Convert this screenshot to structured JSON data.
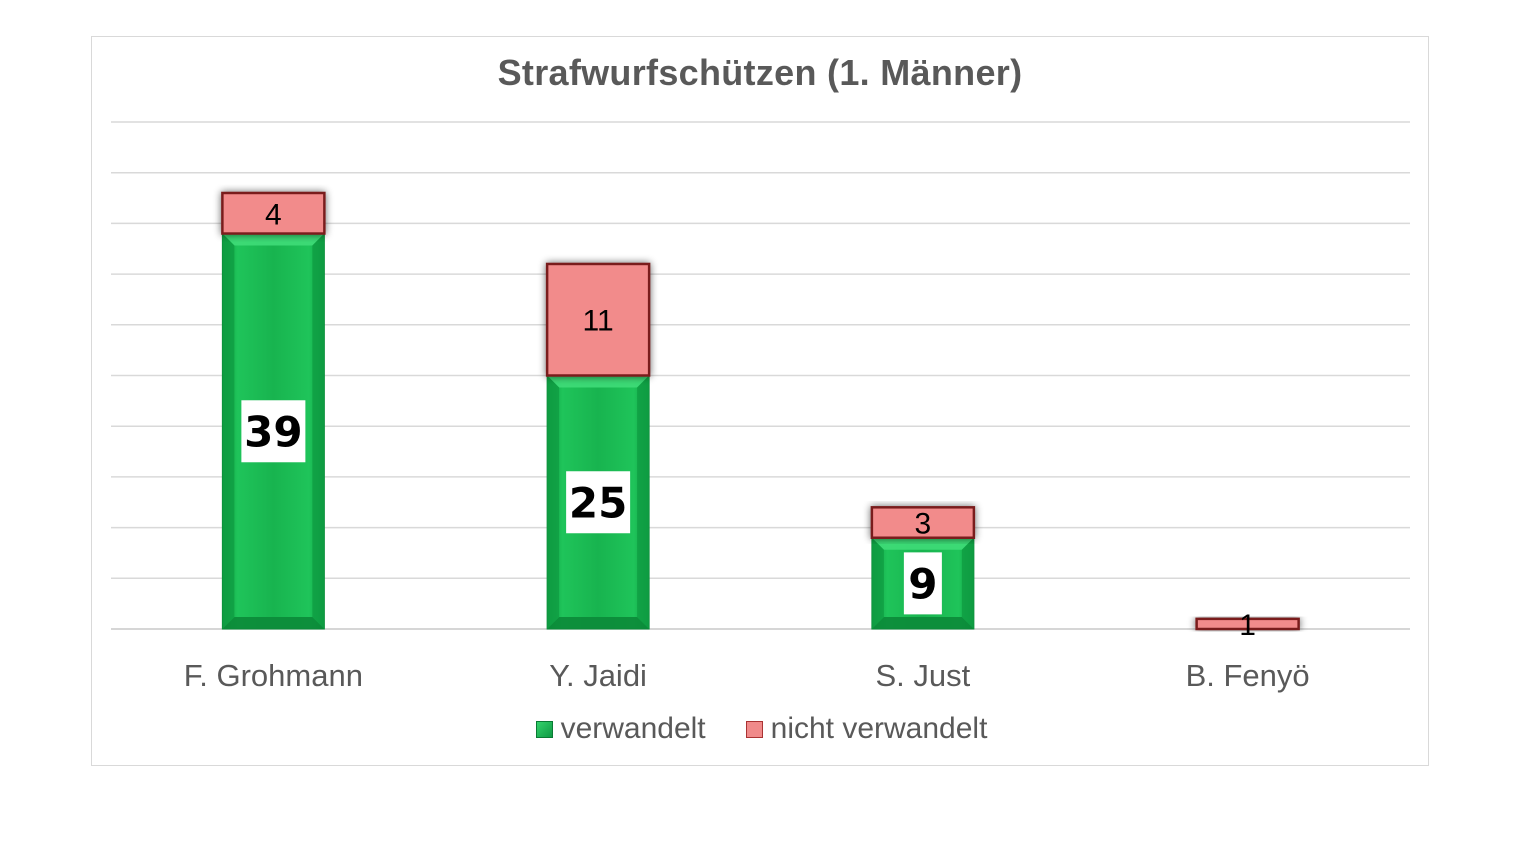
{
  "chart_data": {
    "type": "bar",
    "stacked": true,
    "title": "Strafwurfschützen (1. Männer)",
    "categories": [
      "F. Grohmann",
      "Y. Jaidi",
      "S. Just",
      "B. Fenyö"
    ],
    "series": [
      {
        "name": "verwandelt",
        "values": [
          39,
          25,
          9,
          0
        ],
        "color": "#18b44f"
      },
      {
        "name": "nicht verwandelt",
        "values": [
          4,
          11,
          3,
          1
        ],
        "color": "#f28b8b"
      }
    ],
    "ylim": [
      0,
      50
    ],
    "ytick_step": 5,
    "grid": true,
    "y_axis_labels_visible": false,
    "legend": "bottom",
    "xlabel": "",
    "ylabel": ""
  }
}
